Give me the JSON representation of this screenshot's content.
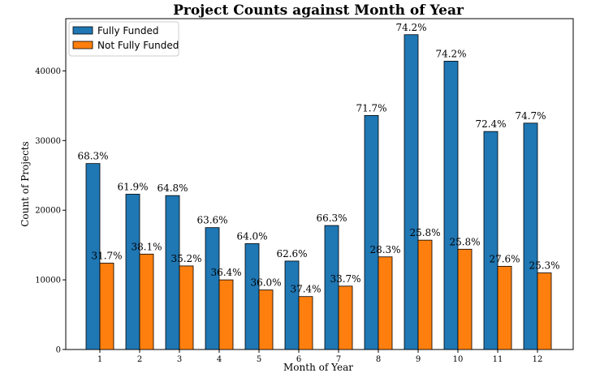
{
  "chart_data": {
    "type": "bar",
    "title": "Project Counts against Month of Year",
    "xlabel": "Month of Year",
    "ylabel": "Count of Projects",
    "categories": [
      "1",
      "2",
      "3",
      "4",
      "5",
      "6",
      "7",
      "8",
      "9",
      "10",
      "11",
      "12"
    ],
    "ylim": [
      0,
      47500
    ],
    "yticks": [
      0,
      10000,
      20000,
      30000,
      40000
    ],
    "grid": false,
    "legend_position": "top-left",
    "series": [
      {
        "name": "Fully Funded",
        "color": "#1f77b4",
        "values": [
          26700,
          22300,
          22100,
          17500,
          15200,
          12700,
          17800,
          33600,
          45200,
          41400,
          31300,
          32500
        ],
        "labels": [
          "68.3%",
          "61.9%",
          "64.8%",
          "63.6%",
          "64.0%",
          "62.6%",
          "66.3%",
          "71.7%",
          "74.2%",
          "74.2%",
          "72.4%",
          "74.7%"
        ]
      },
      {
        "name": "Not Fully Funded",
        "color": "#ff7f0e",
        "values": [
          12400,
          13700,
          12000,
          10000,
          8550,
          7600,
          9100,
          13300,
          15700,
          14400,
          11950,
          11000
        ],
        "labels": [
          "31.7%",
          "38.1%",
          "35.2%",
          "36.4%",
          "36.0%",
          "37.4%",
          "33.7%",
          "28.3%",
          "25.8%",
          "25.8%",
          "27.6%",
          "25.3%"
        ]
      }
    ]
  }
}
